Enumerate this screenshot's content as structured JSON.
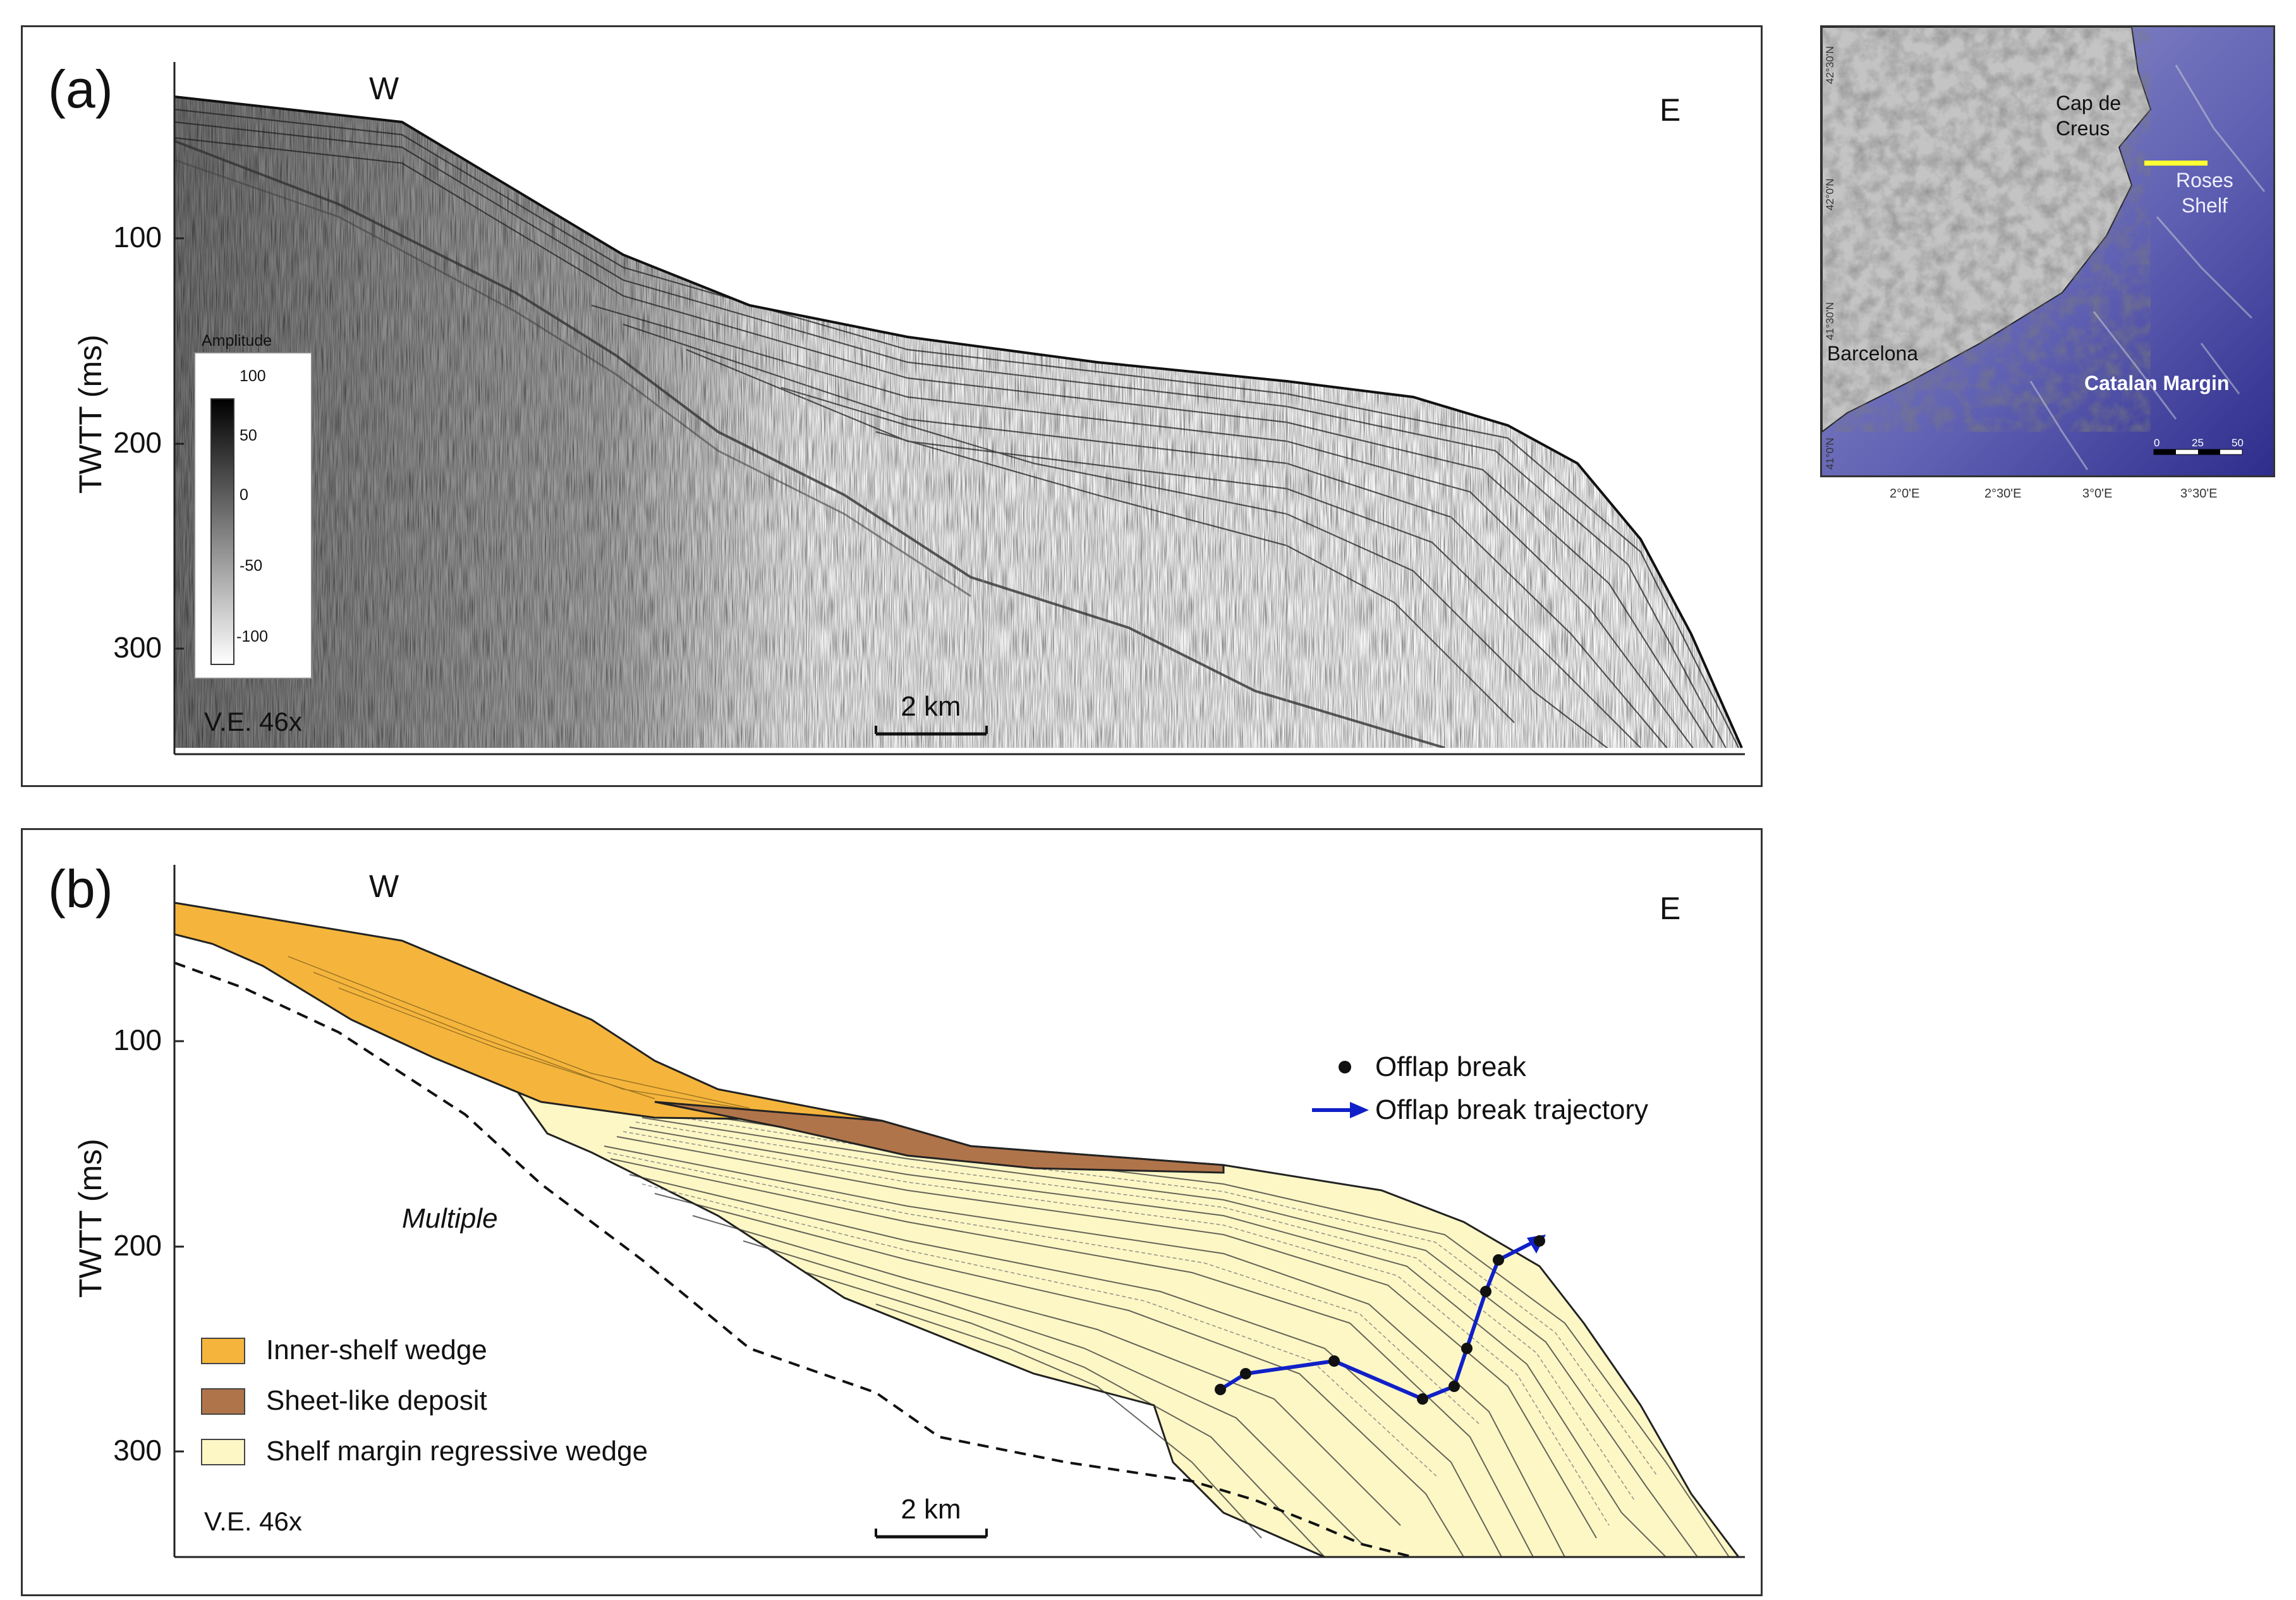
{
  "panel_a": {
    "label": "(a)",
    "west": "W",
    "east": "E",
    "y_axis_label": "TWTT  (ms)",
    "y_ticks": [
      "100",
      "200",
      "300"
    ],
    "ve": "V.E. 46x",
    "scale_bar": "2 km",
    "amplitude_legend": {
      "title": "Amplitude",
      "ticks": [
        "100",
        "50",
        "0",
        "-50",
        "-100"
      ]
    }
  },
  "panel_b": {
    "label": "(b)",
    "west": "W",
    "east": "E",
    "y_axis_label": "TWTT  (ms)",
    "y_ticks": [
      "100",
      "200",
      "300"
    ],
    "ve": "V.E. 46x",
    "scale_bar": "2 km",
    "multiple_label": "Multiple",
    "legend": {
      "offlap_break": "Offlap break",
      "offlap_trajectory": "Offlap break trajectory",
      "inner_shelf": "Inner-shelf wedge",
      "sheet_like": "Sheet-like deposit",
      "shelf_margin": "Shelf margin regressive wedge"
    }
  },
  "map": {
    "labels": {
      "cap_de_creus": "Cap de\nCreus",
      "roses_shelf": "Roses\nShelf",
      "barcelona": "Barcelona",
      "catalan_margin": "Catalan Margin"
    },
    "lat_ticks": [
      "42°30'N",
      "42°0'N",
      "41°30'N",
      "41°0'N"
    ],
    "lon_ticks": [
      "2°0'E",
      "2°30'E",
      "3°0'E",
      "3°30'E"
    ],
    "scale": [
      "0",
      "25",
      "50"
    ]
  },
  "colors": {
    "inner_shelf": "#f5b53c",
    "sheet_like": "#b0744a",
    "shelf_margin": "#fdf7c6",
    "trajectory": "#1020c8",
    "roses_line": "#ffff33"
  }
}
